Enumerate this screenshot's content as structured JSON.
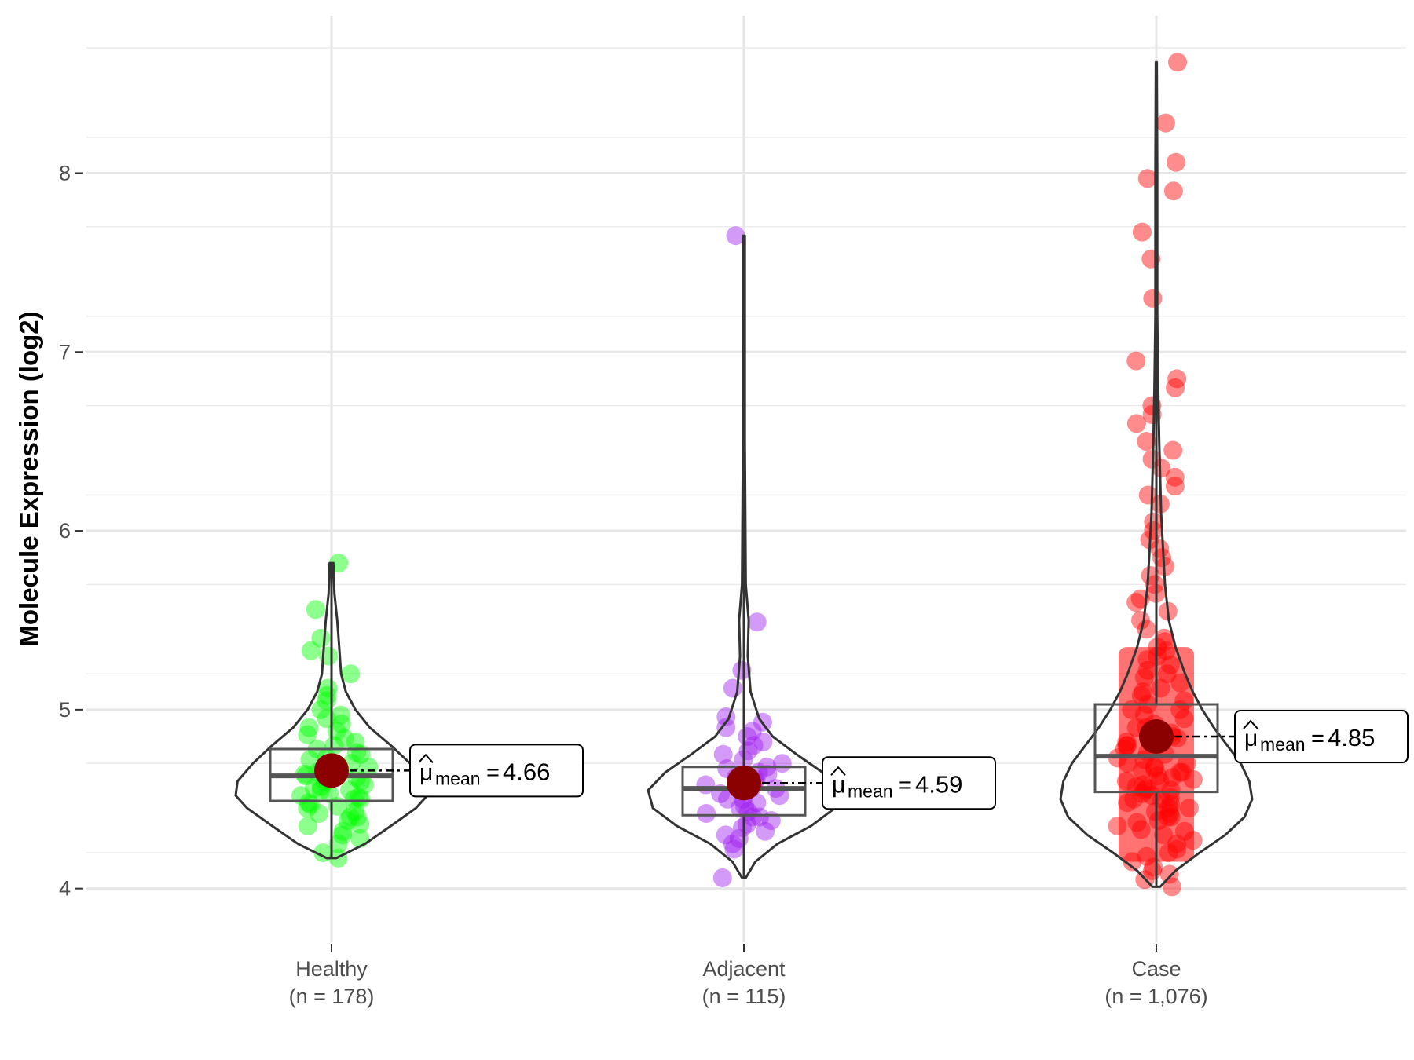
{
  "chart_data": {
    "type": "violin",
    "title": "",
    "xlabel": "",
    "ylabel": "Molecule Expression (log2)",
    "ylim": [
      3.7,
      8.88
    ],
    "yticks": [
      4,
      5,
      6,
      7,
      8
    ],
    "grid": true,
    "groups": [
      {
        "name": "Healthy",
        "n_label": "(n = 178)",
        "color": "#00ff00",
        "min": 4.17,
        "q1": 4.49,
        "median": 4.63,
        "q3": 4.78,
        "max": 5.82,
        "mean": 4.66,
        "mean_label": "4.66",
        "violin_profile": [
          [
            4.17,
            0.05
          ],
          [
            4.25,
            0.35
          ],
          [
            4.35,
            0.62
          ],
          [
            4.45,
            0.88
          ],
          [
            4.52,
            1.0
          ],
          [
            4.6,
            0.98
          ],
          [
            4.7,
            0.82
          ],
          [
            4.8,
            0.62
          ],
          [
            4.9,
            0.4
          ],
          [
            5.0,
            0.25
          ],
          [
            5.1,
            0.15
          ],
          [
            5.2,
            0.1
          ],
          [
            5.35,
            0.08
          ],
          [
            5.5,
            0.06
          ],
          [
            5.65,
            0.03
          ],
          [
            5.82,
            0.02
          ]
        ],
        "points": [
          4.17,
          4.2,
          4.25,
          4.28,
          4.3,
          4.32,
          4.35,
          4.36,
          4.38,
          4.4,
          4.4,
          4.42,
          4.43,
          4.45,
          4.46,
          4.47,
          4.48,
          4.5,
          4.5,
          4.51,
          4.52,
          4.53,
          4.55,
          4.55,
          4.56,
          4.57,
          4.58,
          4.6,
          4.6,
          4.61,
          4.62,
          4.63,
          4.64,
          4.65,
          4.66,
          4.67,
          4.68,
          4.7,
          4.7,
          4.72,
          4.73,
          4.75,
          4.76,
          4.78,
          4.8,
          4.82,
          4.84,
          4.86,
          4.88,
          4.9,
          4.92,
          4.95,
          4.97,
          5.0,
          5.05,
          5.08,
          5.12,
          5.2,
          5.3,
          5.33,
          5.4,
          5.56,
          5.82
        ]
      },
      {
        "name": "Adjacent",
        "n_label": "(n = 115)",
        "color": "#a020f0",
        "min": 4.06,
        "q1": 4.41,
        "median": 4.56,
        "q3": 4.68,
        "max": 7.65,
        "mean": 4.59,
        "mean_label": "4.59",
        "violin_profile": [
          [
            4.06,
            0.02
          ],
          [
            4.15,
            0.12
          ],
          [
            4.25,
            0.35
          ],
          [
            4.35,
            0.7
          ],
          [
            4.45,
            0.95
          ],
          [
            4.55,
            1.0
          ],
          [
            4.65,
            0.82
          ],
          [
            4.75,
            0.55
          ],
          [
            4.85,
            0.3
          ],
          [
            4.95,
            0.16
          ],
          [
            5.1,
            0.07
          ],
          [
            5.3,
            0.04
          ],
          [
            5.5,
            0.05
          ],
          [
            5.7,
            0.02
          ],
          [
            6.5,
            0.01
          ],
          [
            7.5,
            0.01
          ],
          [
            7.65,
            0.01
          ]
        ],
        "points": [
          4.06,
          4.22,
          4.25,
          4.28,
          4.3,
          4.32,
          4.34,
          4.36,
          4.38,
          4.4,
          4.4,
          4.42,
          4.43,
          4.45,
          4.46,
          4.48,
          4.5,
          4.5,
          4.52,
          4.53,
          4.55,
          4.56,
          4.57,
          4.58,
          4.6,
          4.61,
          4.62,
          4.64,
          4.65,
          4.67,
          4.68,
          4.7,
          4.72,
          4.75,
          4.77,
          4.8,
          4.82,
          4.85,
          4.88,
          4.9,
          4.93,
          4.96,
          5.12,
          5.22,
          5.49,
          7.65
        ]
      },
      {
        "name": "Case",
        "n_label": "(n = 1,076)",
        "color": "#ff0000",
        "min": 4.01,
        "q1": 4.54,
        "median": 4.74,
        "q3": 5.03,
        "max": 8.62,
        "mean": 4.85,
        "mean_label": "4.85",
        "violin_profile": [
          [
            4.01,
            0.04
          ],
          [
            4.1,
            0.2
          ],
          [
            4.2,
            0.45
          ],
          [
            4.3,
            0.72
          ],
          [
            4.4,
            0.92
          ],
          [
            4.5,
            1.0
          ],
          [
            4.6,
            0.97
          ],
          [
            4.7,
            0.88
          ],
          [
            4.8,
            0.74
          ],
          [
            4.9,
            0.6
          ],
          [
            5.0,
            0.48
          ],
          [
            5.1,
            0.38
          ],
          [
            5.2,
            0.3
          ],
          [
            5.35,
            0.2
          ],
          [
            5.5,
            0.13
          ],
          [
            5.7,
            0.09
          ],
          [
            5.9,
            0.07
          ],
          [
            6.1,
            0.05
          ],
          [
            6.3,
            0.04
          ],
          [
            6.5,
            0.03
          ],
          [
            6.8,
            0.02
          ],
          [
            7.2,
            0.01
          ],
          [
            8.0,
            0.01
          ],
          [
            8.62,
            0.005
          ]
        ],
        "points": [
          4.01,
          4.05,
          4.08,
          4.1,
          4.12,
          4.15,
          4.18,
          4.2,
          4.22,
          4.25,
          4.27,
          4.3,
          4.32,
          4.33,
          4.35,
          4.37,
          4.38,
          4.4,
          4.4,
          4.42,
          4.43,
          4.45,
          4.45,
          4.47,
          4.48,
          4.5,
          4.5,
          4.51,
          4.52,
          4.53,
          4.55,
          4.55,
          4.56,
          4.57,
          4.58,
          4.6,
          4.6,
          4.61,
          4.62,
          4.63,
          4.65,
          4.65,
          4.66,
          4.67,
          4.68,
          4.7,
          4.7,
          4.72,
          4.73,
          4.75,
          4.76,
          4.78,
          4.8,
          4.8,
          4.82,
          4.84,
          4.85,
          4.87,
          4.9,
          4.9,
          4.92,
          4.95,
          4.97,
          5.0,
          5.0,
          5.03,
          5.05,
          5.08,
          5.1,
          5.12,
          5.15,
          5.18,
          5.2,
          5.22,
          5.25,
          5.28,
          5.3,
          5.33,
          5.35,
          5.38,
          5.4,
          5.45,
          5.5,
          5.55,
          5.6,
          5.62,
          5.65,
          5.7,
          5.75,
          5.8,
          5.85,
          5.9,
          5.95,
          6.0,
          6.05,
          6.15,
          6.2,
          6.25,
          6.3,
          6.35,
          6.4,
          6.45,
          6.5,
          6.6,
          6.65,
          6.7,
          6.8,
          6.85,
          6.95,
          7.3,
          7.52,
          7.67,
          7.9,
          7.97,
          8.06,
          8.28,
          8.62
        ]
      }
    ]
  }
}
